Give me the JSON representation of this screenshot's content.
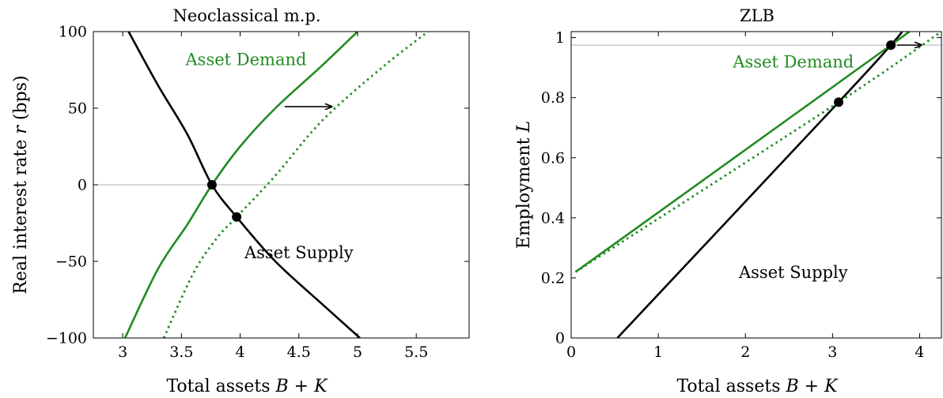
{
  "colors": {
    "demand": "#228B22",
    "supply": "#000000",
    "refline": "#b3b3b3"
  },
  "chart_data": [
    {
      "type": "line",
      "title": "Neoclassical m.p.",
      "xlabel": "Total assets B + K",
      "ylabel": "Real interest rate r (bps)",
      "xlim": [
        2.75,
        5.95
      ],
      "ylim": [
        -100,
        100
      ],
      "x_ticks": [
        3,
        3.5,
        4,
        4.5,
        5,
        5.5
      ],
      "x_tick_labels": [
        "3",
        "3.5",
        "4",
        "4.5",
        "5",
        "5.5"
      ],
      "y_ticks": [
        -100,
        -50,
        0,
        50,
        100
      ],
      "y_tick_labels": [
        "−100",
        "−50",
        "0",
        "50",
        "100"
      ],
      "reference_lines": [
        {
          "axis": "y",
          "value": 0
        }
      ],
      "series": [
        {
          "role": "supply",
          "style": "solid",
          "points": [
            [
              3.05,
              100
            ],
            [
              3.3,
              65
            ],
            [
              3.55,
              33
            ],
            [
              3.76,
              0
            ],
            [
              3.97,
              -21
            ],
            [
              4.3,
              -50
            ],
            [
              4.7,
              -78
            ],
            [
              5.02,
              -100
            ]
          ]
        },
        {
          "role": "demand",
          "style": "solid",
          "points": [
            [
              3.02,
              -100
            ],
            [
              3.3,
              -55
            ],
            [
              3.55,
              -26
            ],
            [
              3.76,
              0
            ],
            [
              4.0,
              25
            ],
            [
              4.3,
              50
            ],
            [
              4.7,
              78
            ],
            [
              5.0,
              100
            ]
          ]
        },
        {
          "role": "demand-shifted",
          "style": "dotted",
          "points": [
            [
              3.35,
              -100
            ],
            [
              3.6,
              -58
            ],
            [
              3.8,
              -35
            ],
            [
              3.97,
              -21
            ],
            [
              4.3,
              6
            ],
            [
              4.7,
              42
            ],
            [
              5.2,
              76
            ],
            [
              5.6,
              100
            ]
          ]
        }
      ],
      "points": [
        {
          "x": 3.76,
          "y": 0
        },
        {
          "x": 3.97,
          "y": -21
        }
      ],
      "annotations": [
        {
          "text": "Asset Demand",
          "x": 4.05,
          "y": 78,
          "color": "demand"
        },
        {
          "text": "Asset Supply",
          "x": 4.5,
          "y": -48,
          "color": "supply"
        }
      ],
      "arrows": [
        {
          "from": [
            4.38,
            51
          ],
          "to": [
            4.78,
            51
          ]
        }
      ]
    },
    {
      "type": "line",
      "title": "ZLB",
      "xlabel": "Total assets B + K",
      "ylabel": "Employment L",
      "xlim": [
        0,
        4.25
      ],
      "ylim": [
        0,
        1.02
      ],
      "x_ticks": [
        0,
        1,
        2,
        3,
        4
      ],
      "x_tick_labels": [
        "0",
        "1",
        "2",
        "3",
        "4"
      ],
      "y_ticks": [
        0,
        0.2,
        0.4,
        0.6,
        0.8,
        1
      ],
      "y_tick_labels": [
        "0",
        "0.2",
        "0.4",
        "0.6",
        "0.8",
        "1"
      ],
      "reference_lines": [
        {
          "axis": "y",
          "value": 0.975
        }
      ],
      "series": [
        {
          "role": "supply",
          "style": "solid",
          "points": [
            [
              0.53,
              0
            ],
            [
              3.07,
              0.785
            ],
            [
              3.67,
              0.975
            ],
            [
              3.8,
              1.02
            ]
          ]
        },
        {
          "role": "demand",
          "style": "solid",
          "points": [
            [
              0.05,
              0.22
            ],
            [
              3.67,
              0.975
            ],
            [
              3.86,
              1.02
            ]
          ]
        },
        {
          "role": "demand-shifted",
          "style": "dotted",
          "points": [
            [
              0.05,
              0.22
            ],
            [
              3.07,
              0.785
            ],
            [
              4.25,
              1.02
            ]
          ]
        }
      ],
      "points": [
        {
          "x": 3.07,
          "y": 0.785
        },
        {
          "x": 3.67,
          "y": 0.975
        }
      ],
      "annotations": [
        {
          "text": "Asset Demand",
          "x": 2.55,
          "y": 0.9,
          "color": "demand"
        },
        {
          "text": "Asset Supply",
          "x": 2.55,
          "y": 0.2,
          "color": "supply"
        }
      ],
      "arrows": [
        {
          "from": [
            3.74,
            0.975
          ],
          "to": [
            4.02,
            0.975
          ]
        }
      ]
    }
  ]
}
